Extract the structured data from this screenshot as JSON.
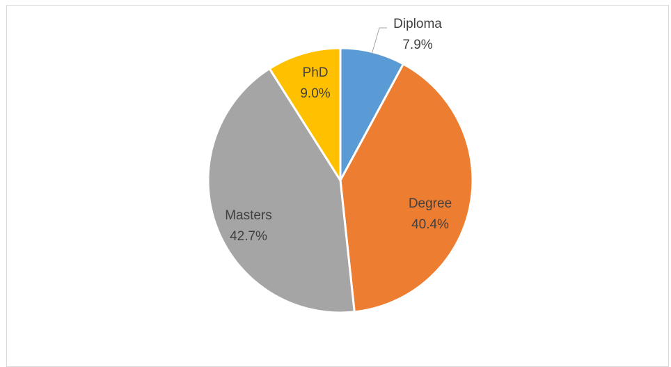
{
  "chart_data": {
    "type": "pie",
    "title": "",
    "slices": [
      {
        "label": "Diploma",
        "value": 7.9,
        "value_label": "7.9%",
        "color": "#5b9bd5",
        "label_color": "#404040"
      },
      {
        "label": "Degree",
        "value": 40.4,
        "value_label": "40.4%",
        "color": "#ed7d31",
        "label_color": "#404040"
      },
      {
        "label": "Masters",
        "value": 42.7,
        "value_label": "42.7%",
        "color": "#a5a5a5",
        "label_color": "#404040"
      },
      {
        "label": "PhD",
        "value": 9.0,
        "value_label": "9.0%",
        "color": "#ffc000",
        "label_color": "#404040"
      }
    ],
    "start_angle_deg": 0,
    "direction": "clockwise",
    "slice_border_color": "#ffffff",
    "grid": false,
    "legend": "none"
  }
}
